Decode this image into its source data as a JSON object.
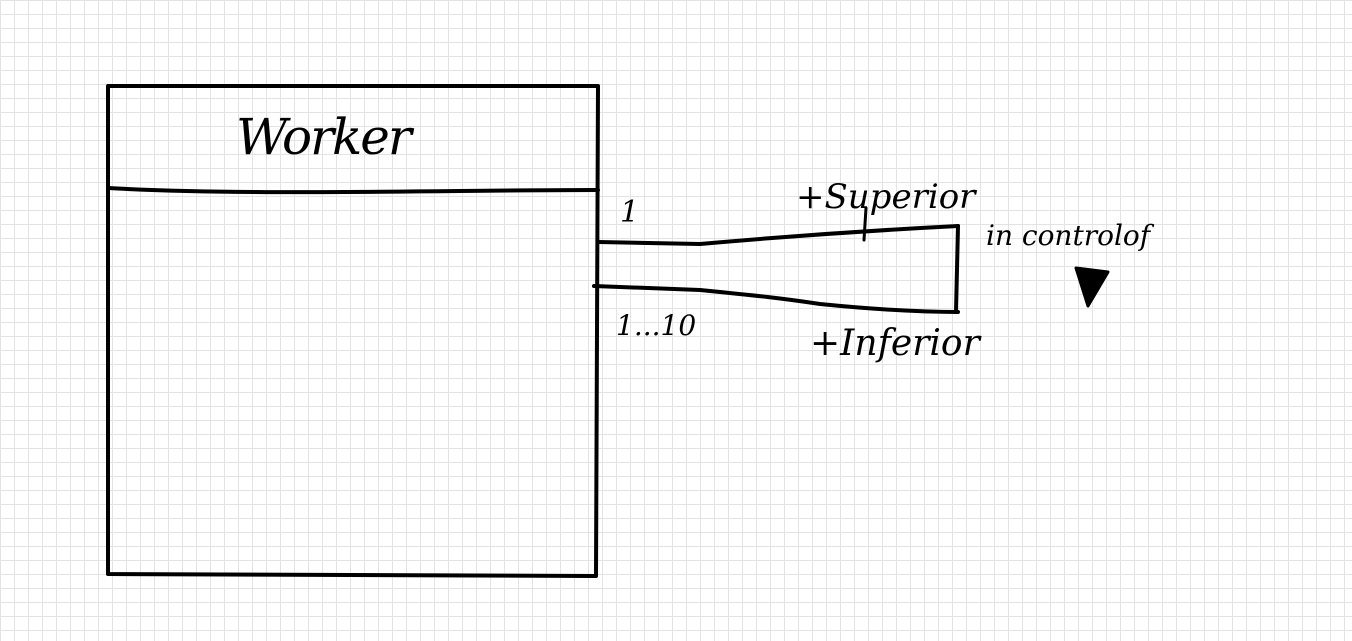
{
  "class_box": {
    "name": "Worker"
  },
  "association": {
    "name": "in controlof",
    "direction_marker": "filled-triangle-down",
    "end_top": {
      "multiplicity": "1",
      "role": "+Superior"
    },
    "end_bottom": {
      "multiplicity": "1...10",
      "role": "+Inferior"
    }
  },
  "colors": {
    "ink": "#000000",
    "grid": "#e3e3e3",
    "paper": "#ffffff"
  }
}
